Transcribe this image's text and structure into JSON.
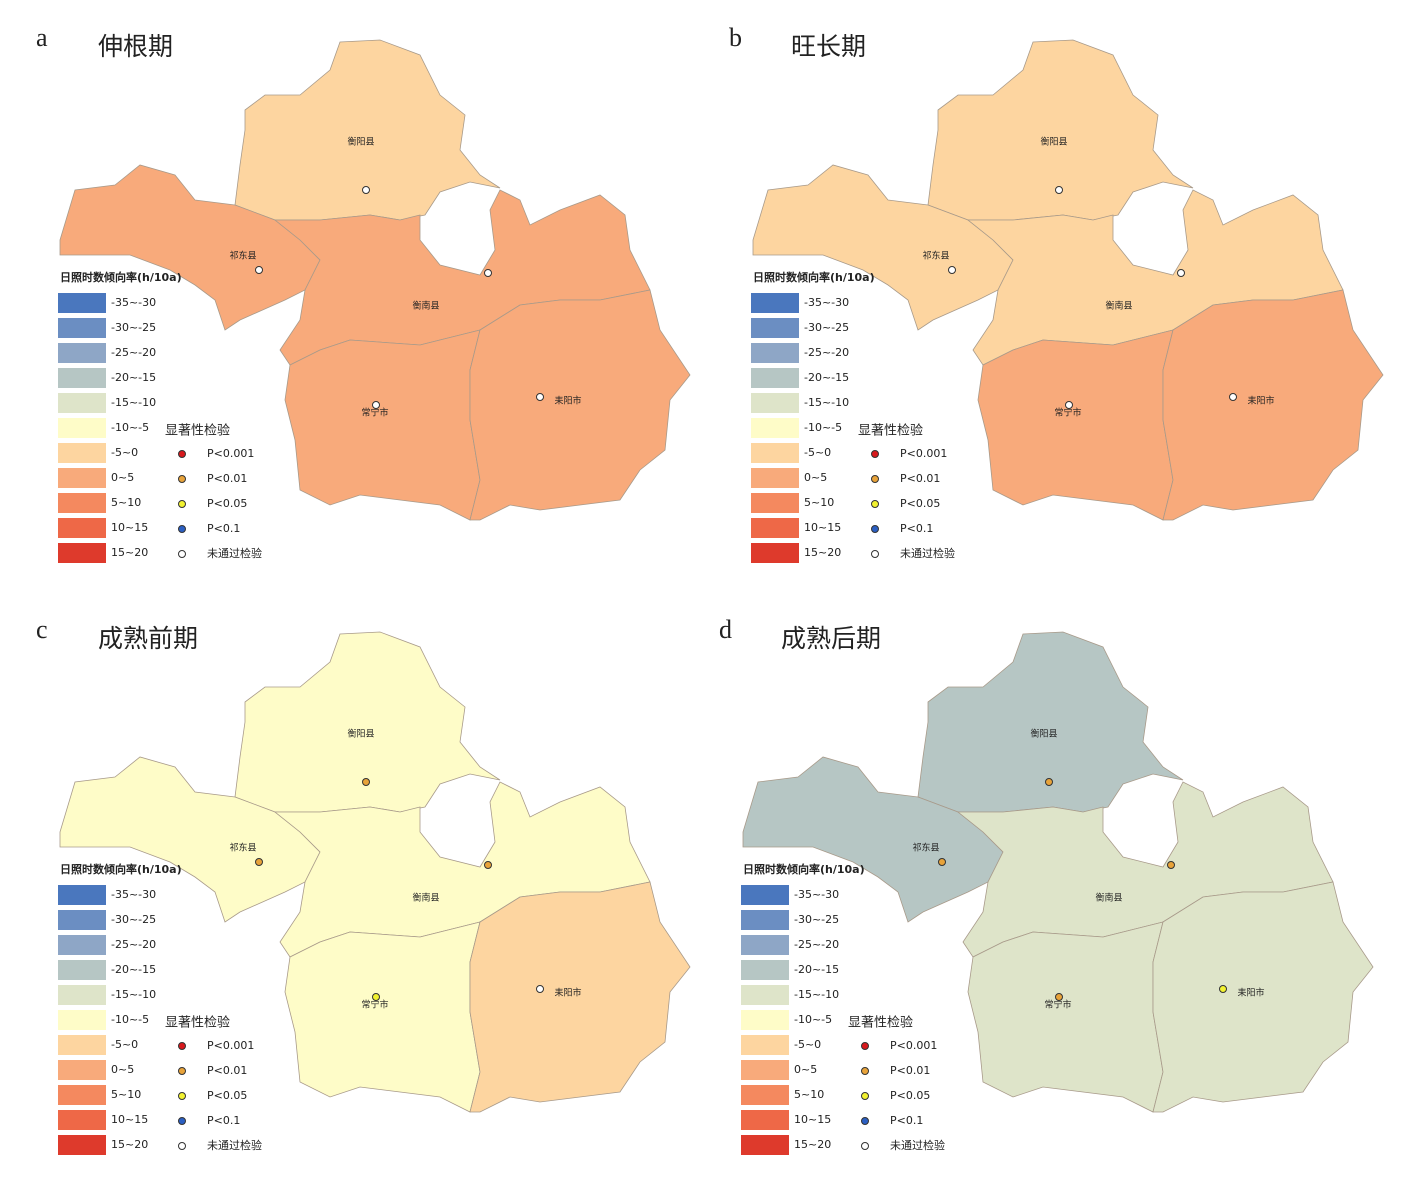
{
  "legend_title": "日照时数倾向率(h/10a)",
  "legend_classes": [
    {
      "label": "-35~-30",
      "color": "#4a77be"
    },
    {
      "label": "-30~-25",
      "color": "#6b8ec2"
    },
    {
      "label": "-25~-20",
      "color": "#8ea6c6"
    },
    {
      "label": "-20~-15",
      "color": "#b6c6c4"
    },
    {
      "label": "-15~-10",
      "color": "#dee4c9"
    },
    {
      "label": "-10~-5",
      "color": "#fefcc8"
    },
    {
      "label": "-5~0",
      "color": "#fdd5a0"
    },
    {
      "label": "0~5",
      "color": "#f8aa7b"
    },
    {
      "label": "5~10",
      "color": "#f4895f"
    },
    {
      "label": "10~15",
      "color": "#ee6847"
    },
    {
      "label": "15~20",
      "color": "#de3a2c"
    }
  ],
  "significance_title": "显著性检验",
  "significance_classes": [
    {
      "label": "P<0.001",
      "color": "#d7191c"
    },
    {
      "label": "P<0.01",
      "color": "#e8a33a"
    },
    {
      "label": "P<0.05",
      "color": "#f2f230"
    },
    {
      "label": "P<0.1",
      "color": "#2b5fc2"
    },
    {
      "label": "未通过检验",
      "color": "#ffffff"
    }
  ],
  "region_names": [
    "衡阳县",
    "祁东县",
    "衡南县",
    "常宁市",
    "耒阳市"
  ],
  "panels": [
    {
      "letter": "a",
      "title": "伸根期",
      "region_colors": [
        "#fdd5a0",
        "#f8aa7b",
        "#f8aa7b",
        "#f8aa7b",
        "#f8aa7b"
      ],
      "station_colors": [
        "#ffffff",
        "#ffffff",
        "#ffffff",
        "#ffffff",
        "#ffffff"
      ]
    },
    {
      "letter": "b",
      "title": "旺长期",
      "region_colors": [
        "#fdd5a0",
        "#fdd5a0",
        "#fdd5a0",
        "#f8aa7b",
        "#f8aa7b"
      ],
      "station_colors": [
        "#ffffff",
        "#ffffff",
        "#ffffff",
        "#ffffff",
        "#ffffff"
      ]
    },
    {
      "letter": "c",
      "title": "成熟前期",
      "region_colors": [
        "#fefcc8",
        "#fefcc8",
        "#fefcc8",
        "#fefcc8",
        "#fdd5a0"
      ],
      "station_colors": [
        "#e8a33a",
        "#e8a33a",
        "#e8a33a",
        "#f2f230",
        "#ffffff"
      ]
    },
    {
      "letter": "d",
      "title": "成熟后期",
      "region_colors": [
        "#b6c6c4",
        "#b6c6c4",
        "#dee4c9",
        "#dee4c9",
        "#dee4c9"
      ],
      "station_colors": [
        "#e8a33a",
        "#e8a33a",
        "#e8a33a",
        "#e8a33a",
        "#f2f230"
      ]
    }
  ]
}
